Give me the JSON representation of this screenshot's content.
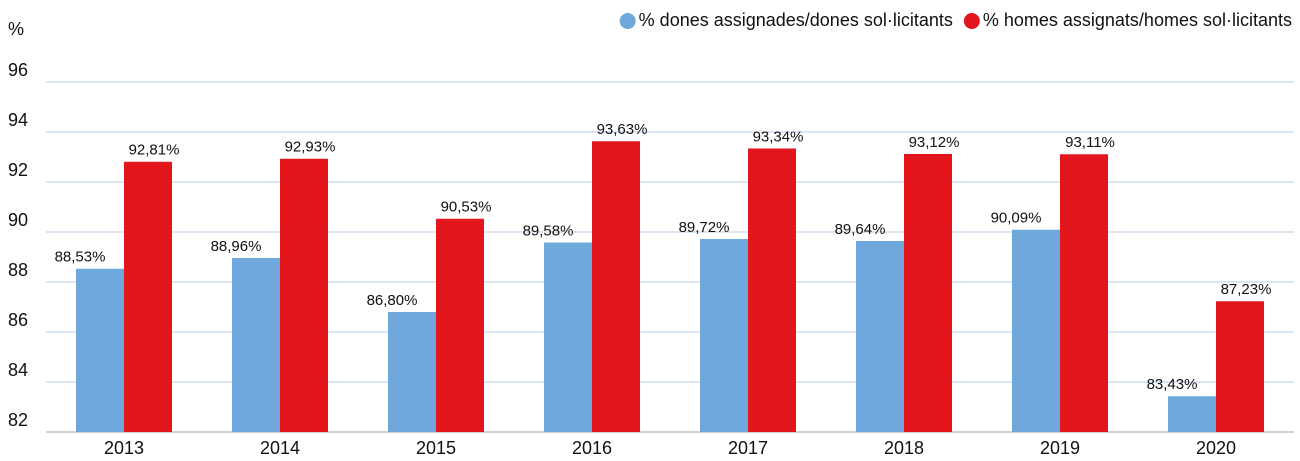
{
  "chart_data": {
    "type": "bar",
    "y_label": "%",
    "categories": [
      "2013",
      "2014",
      "2015",
      "2016",
      "2017",
      "2018",
      "2019",
      "2020"
    ],
    "series": [
      {
        "name": "% dones assignades/dones sol·licitants",
        "color": "#6fa8dc",
        "values": [
          88.53,
          88.96,
          86.8,
          89.58,
          89.72,
          89.64,
          90.09,
          83.43
        ],
        "value_labels": [
          "88,53%",
          "88,96%",
          "86,80%",
          "89,58%",
          "89,72%",
          "89,64%",
          "90,09%",
          "83,43%"
        ]
      },
      {
        "name": "% homes assignats/homes sol·licitants",
        "color": "#e3161e",
        "values": [
          92.81,
          92.93,
          90.53,
          93.63,
          93.34,
          93.12,
          93.11,
          87.23
        ],
        "value_labels": [
          "92,81%",
          "92,93%",
          "90,53%",
          "93,63%",
          "93,34%",
          "93,12%",
          "93,11%",
          "87,23%"
        ]
      }
    ],
    "ylim": [
      82,
      96
    ],
    "yticks": [
      82,
      84,
      86,
      88,
      90,
      92,
      94,
      96
    ],
    "grid": true,
    "legend": "top-right"
  }
}
